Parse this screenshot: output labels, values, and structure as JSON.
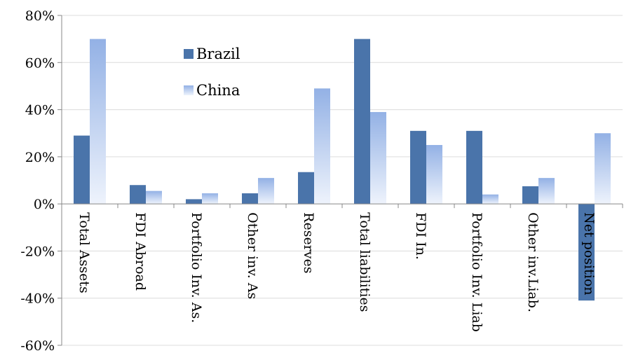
{
  "chart_data": {
    "type": "bar",
    "categories": [
      "Total Assets",
      "FDI Abroad",
      "Portfolio Inv. As.",
      "Other inv. As",
      "Reserves",
      "Total liabilities",
      "FDI In.",
      "Portfolio Inv. Liab",
      "Other inv.Liab.",
      "Net position"
    ],
    "series": [
      {
        "name": "Brazil",
        "values": [
          29,
          8,
          2,
          4.5,
          13.5,
          70,
          31,
          31,
          7.5,
          -41
        ]
      },
      {
        "name": "China",
        "values": [
          70,
          5.5,
          4.5,
          11,
          49,
          39,
          25,
          4,
          11,
          30
        ]
      }
    ],
    "xlabel": "",
    "ylabel": "",
    "ylim": [
      -60,
      80
    ],
    "yticks": [
      -60,
      -40,
      -20,
      0,
      20,
      40,
      60,
      80
    ],
    "ytick_labels": [
      "-60%",
      "-40%",
      "-20%",
      "0%",
      "20%",
      "40%",
      "60%",
      "80%"
    ],
    "grid": true,
    "legend_position": "top-left inside plot",
    "colors": {
      "Brazil": "#4a74aa",
      "China_top": "#95b3e6",
      "China_bottom": "#eef3fc",
      "grid": "#dcdcdc",
      "axis": "#888888"
    }
  }
}
